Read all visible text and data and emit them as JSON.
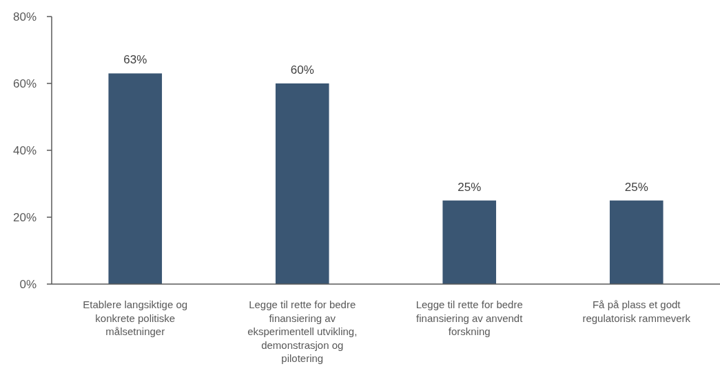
{
  "chart_data": {
    "type": "bar",
    "categories": [
      "Etablere langsiktige og konkrete politiske målsetninger",
      "Legge til rette for bedre finansiering av eksperimentell utvikling, demonstrasjon og pilotering",
      "Legge til rette for bedre finansiering av anvendt forskning",
      "Få på plass et godt regulatorisk rammeverk"
    ],
    "values": [
      63,
      60,
      25,
      25
    ],
    "value_labels": [
      "63%",
      "60%",
      "25%",
      "25%"
    ],
    "color": "#3a5673",
    "ylim": [
      0,
      80
    ],
    "yticks": [
      {
        "value": 0,
        "label": "0%"
      },
      {
        "value": 20,
        "label": "20%"
      },
      {
        "value": 40,
        "label": "40%"
      },
      {
        "value": 60,
        "label": "60%"
      },
      {
        "value": 80,
        "label": "80%"
      }
    ]
  }
}
